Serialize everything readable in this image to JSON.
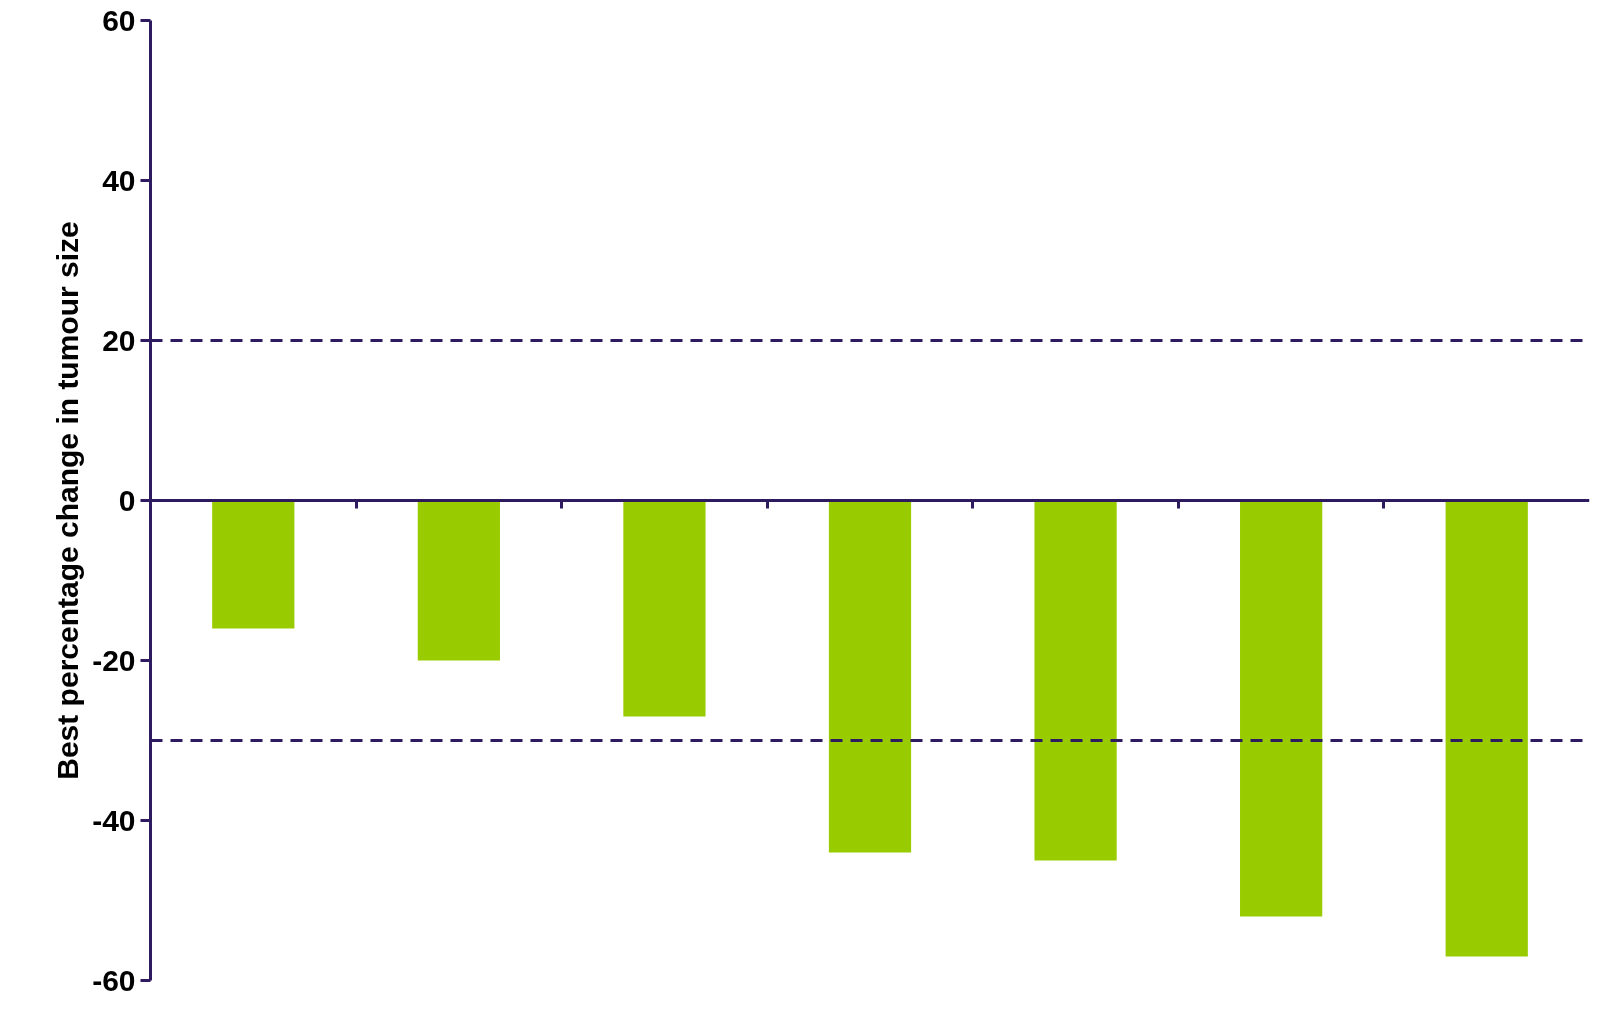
{
  "chart_data": {
    "type": "bar",
    "ylabel": "Best percentage change in tumour size",
    "categories": [
      null,
      null,
      null,
      null,
      null,
      null,
      null
    ],
    "values": [
      -16,
      -20,
      -27,
      -44,
      -45,
      -52,
      -57
    ],
    "color": "#99cc00",
    "ylim": [
      -60,
      60
    ],
    "yticks": [
      -60,
      -40,
      -20,
      0,
      20,
      40,
      60
    ],
    "grid": false,
    "tick_labels": "y",
    "ref_lines": [
      {
        "axis": "y",
        "value": 20,
        "color": "#2e1a5e",
        "line_style": "dashed"
      },
      {
        "axis": "y",
        "value": -30,
        "color": "#2e1a5e",
        "line_style": "dashed"
      }
    ]
  }
}
